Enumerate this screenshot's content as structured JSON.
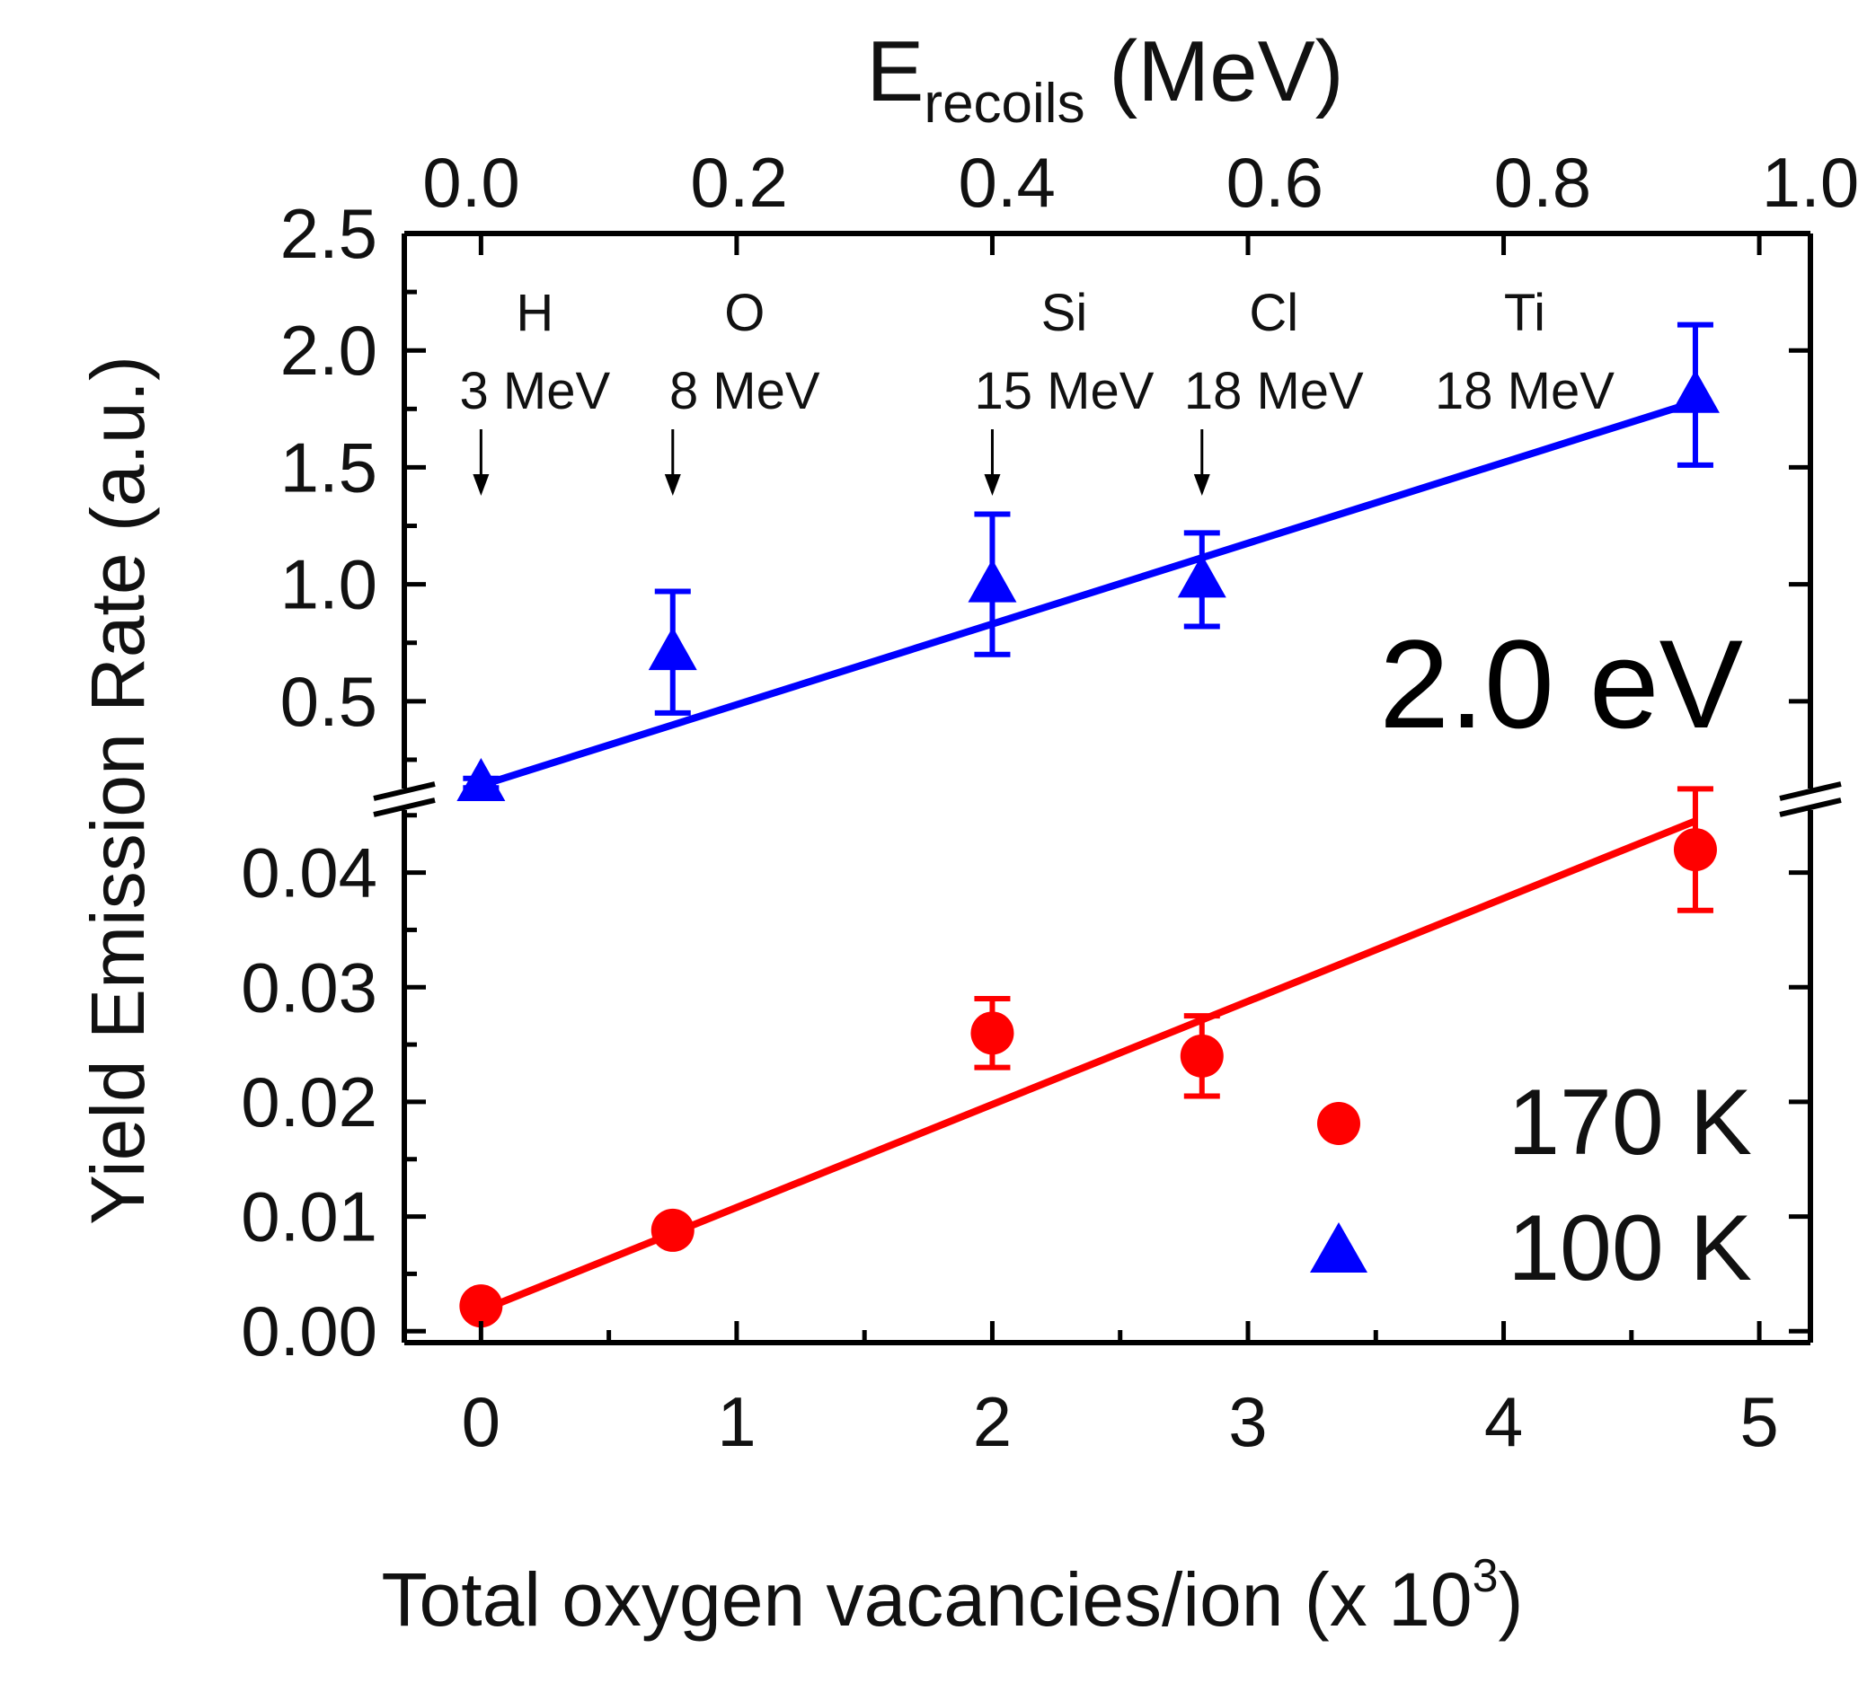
{
  "chart_data": {
    "type": "scatter",
    "x_axis_bottom": {
      "label": "Total oxygen vacancies/ion (x 10",
      "label_sup": "3",
      "label_close": ")",
      "range": [
        -0.3,
        5.2
      ],
      "ticks": [
        "0",
        "1",
        "2",
        "3",
        "4",
        "5"
      ]
    },
    "x_axis_top": {
      "label_main": "E",
      "label_sub": "recoils",
      "label_unit": " (MeV)",
      "range": [
        -0.05,
        1.0
      ],
      "ticks": [
        "0.0",
        "0.2",
        "0.4",
        "0.6",
        "0.8",
        "1.0"
      ]
    },
    "y_axis": {
      "label": "Yield Emission Rate (a.u.)",
      "broken": true,
      "upper_range": [
        0.1,
        2.5
      ],
      "upper_ticks": [
        "0.5",
        "1.0",
        "1.5",
        "2.0",
        "2.5"
      ],
      "lower_range": [
        -0.001,
        0.046
      ],
      "lower_ticks": [
        "0.00",
        "0.01",
        "0.02",
        "0.03",
        "0.04"
      ]
    },
    "annotation": "2.0 eV",
    "ions": [
      {
        "ion": "H",
        "energy": "3 MeV",
        "x": 0.0
      },
      {
        "ion": "O",
        "energy": "8 MeV",
        "x": 0.75
      },
      {
        "ion": "Si",
        "energy": "15 MeV",
        "x": 2.0
      },
      {
        "ion": "Cl",
        "energy": "18 MeV",
        "x": 2.82
      },
      {
        "ion": "Ti",
        "energy": "18 MeV",
        "x": 4.75
      }
    ],
    "series": [
      {
        "name": "170 K",
        "color": "#ff0000",
        "marker": "circle",
        "panel": "lower",
        "points": [
          {
            "x": 0.0,
            "y": 0.0022,
            "err": 0.0008
          },
          {
            "x": 0.75,
            "y": 0.0088,
            "err": 0.0008
          },
          {
            "x": 2.0,
            "y": 0.026,
            "err": 0.003
          },
          {
            "x": 2.82,
            "y": 0.024,
            "err": 0.0035
          },
          {
            "x": 4.75,
            "y": 0.042,
            "err": 0.0053
          }
        ],
        "fit": {
          "x": [
            0.0,
            4.75
          ],
          "y": [
            0.0018,
            0.0445
          ]
        }
      },
      {
        "name": "100 K",
        "color": "#0000ff",
        "marker": "triangle",
        "panel": "upper",
        "points": [
          {
            "x": 0.0,
            "y": 0.15,
            "err": 0.02
          },
          {
            "x": 0.75,
            "y": 0.71,
            "err": 0.26
          },
          {
            "x": 2.0,
            "y": 1.0,
            "err": 0.3
          },
          {
            "x": 2.82,
            "y": 1.02,
            "err": 0.2
          },
          {
            "x": 4.75,
            "y": 1.81,
            "err": 0.3
          }
        ],
        "fit": {
          "x": [
            0.0,
            4.75
          ],
          "y": [
            0.14,
            1.78
          ]
        }
      }
    ],
    "legend": {
      "position": "bottom-right",
      "entries": [
        "170 K",
        "100 K"
      ]
    }
  }
}
